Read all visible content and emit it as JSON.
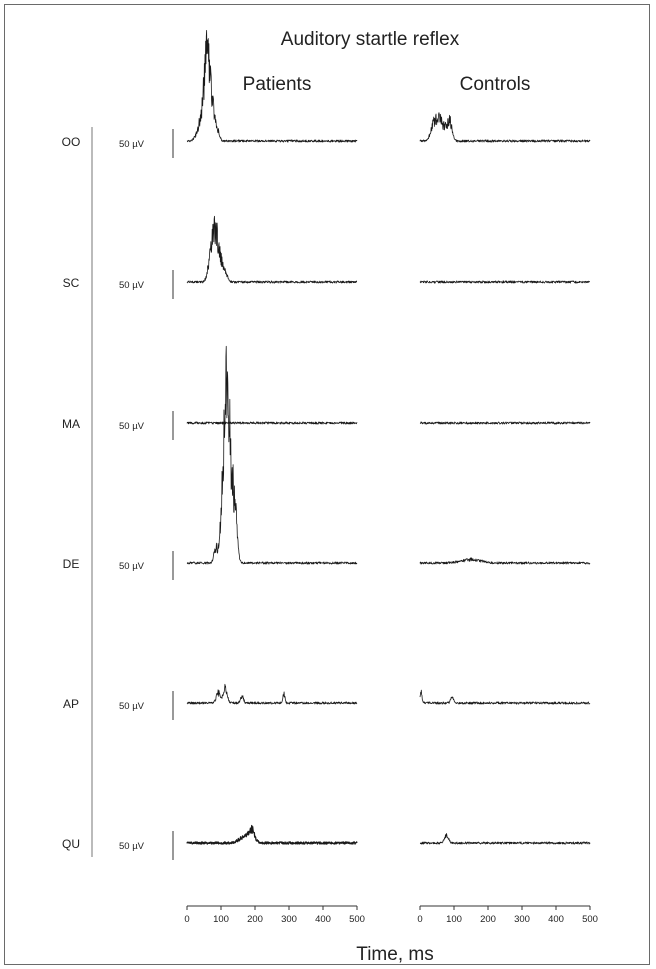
{
  "chart_data": {
    "type": "line",
    "title": "Auditory startle reflex",
    "xlabel": "Time, ms",
    "xlim": [
      0,
      500
    ],
    "xticks": [
      0,
      100,
      200,
      300,
      400,
      500
    ],
    "scale_bar_label": "50 µV",
    "groups": [
      "Patients",
      "Controls"
    ],
    "muscles": [
      "OO",
      "SC",
      "MA",
      "DE",
      "AP",
      "QU"
    ],
    "series": [
      {
        "muscle": "OO",
        "group": "Patients",
        "peaks": [
          [
            48,
            48,
            18
          ],
          [
            58,
            80,
            10
          ],
          [
            66,
            55,
            12
          ],
          [
            76,
            30,
            10
          ],
          [
            90,
            18,
            8
          ]
        ]
      },
      {
        "muscle": "OO",
        "group": "Controls",
        "peaks": [
          [
            40,
            28,
            12
          ],
          [
            52,
            20,
            10
          ],
          [
            62,
            26,
            10
          ],
          [
            78,
            22,
            10
          ],
          [
            90,
            28,
            8
          ]
        ]
      },
      {
        "muscle": "SC",
        "group": "Patients",
        "peaks": [
          [
            68,
            38,
            10
          ],
          [
            78,
            30,
            8
          ],
          [
            85,
            70,
            10
          ],
          [
            98,
            30,
            10
          ],
          [
            112,
            14,
            10
          ]
        ]
      },
      {
        "muscle": "SC",
        "group": "Controls",
        "peaks": []
      },
      {
        "muscle": "MA",
        "group": "Patients",
        "peaks": []
      },
      {
        "muscle": "MA",
        "group": "Controls",
        "peaks": []
      },
      {
        "muscle": "DE",
        "group": "Patients",
        "peaks": [
          [
            85,
            25,
            8
          ],
          [
            100,
            35,
            8
          ],
          [
            112,
            215,
            10
          ],
          [
            122,
            170,
            10
          ],
          [
            135,
            95,
            10
          ],
          [
            145,
            40,
            8
          ]
        ]
      },
      {
        "muscle": "DE",
        "group": "Controls",
        "peaks": [
          [
            150,
            6,
            40
          ]
        ]
      },
      {
        "muscle": "AP",
        "group": "Patients",
        "peaks": [
          [
            92,
            18,
            8
          ],
          [
            112,
            25,
            8
          ],
          [
            162,
            12,
            6
          ],
          [
            285,
            18,
            4
          ]
        ]
      },
      {
        "muscle": "AP",
        "group": "Controls",
        "peaks": [
          [
            3,
            18,
            4
          ],
          [
            95,
            10,
            6
          ]
        ]
      },
      {
        "muscle": "QU",
        "group": "Patients",
        "peaks": [
          [
            175,
            12,
            25
          ],
          [
            190,
            18,
            10
          ]
        ]
      },
      {
        "muscle": "QU",
        "group": "Controls",
        "peaks": [
          [
            78,
            12,
            8
          ]
        ]
      }
    ]
  }
}
